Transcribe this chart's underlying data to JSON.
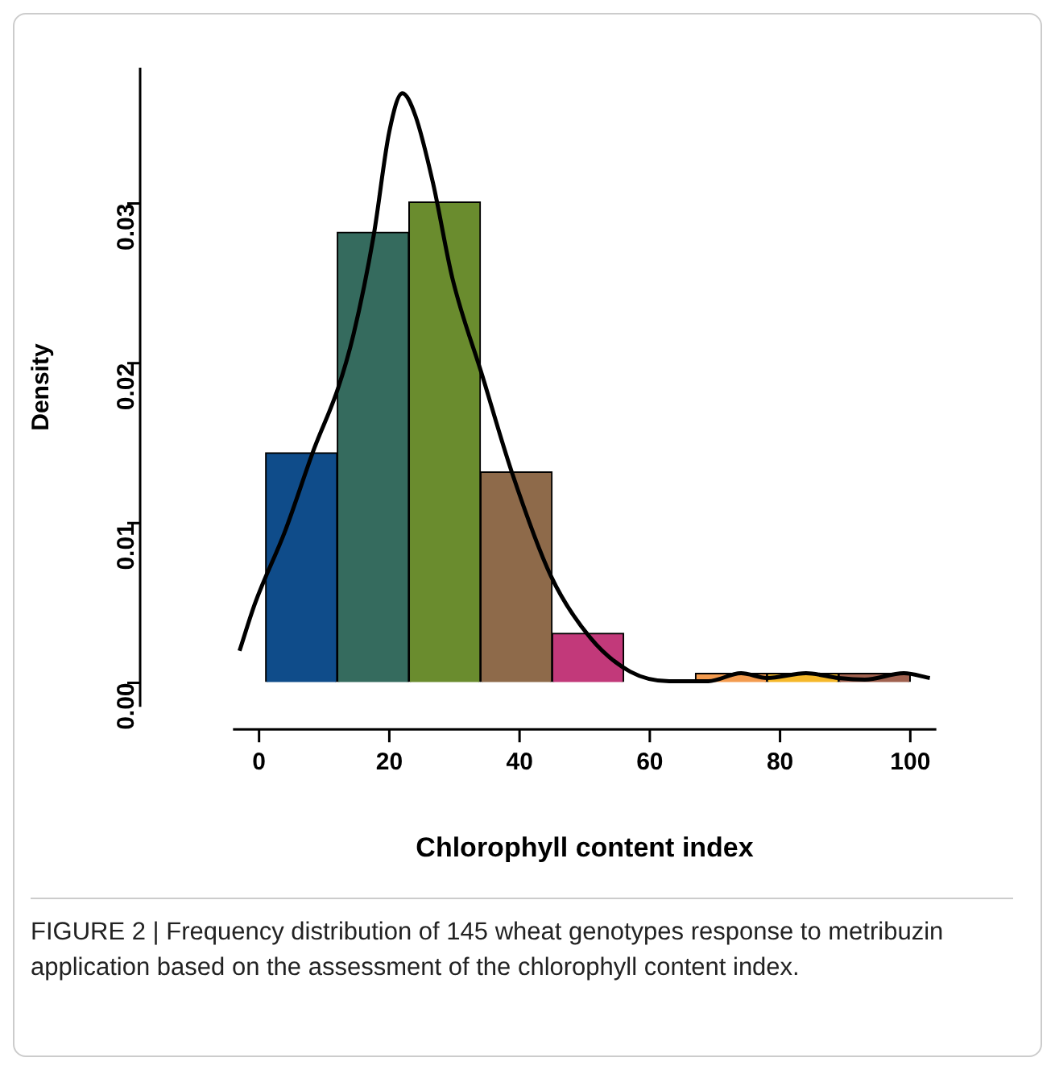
{
  "chart_data": {
    "type": "histogram",
    "xlabel": "Chlorophyll content index",
    "ylabel": "Density",
    "bins": [
      1,
      12,
      23,
      34,
      45,
      56,
      67,
      78,
      89,
      100
    ],
    "values": [
      0.0144,
      0.0282,
      0.0301,
      0.0132,
      0.0031,
      0,
      0.0006,
      0.0006,
      0.0006
    ],
    "colors": [
      "#0f4c8a",
      "#356b5e",
      "#6a8c2e",
      "#8e6a4a",
      "#c2397a",
      "#888888",
      "#f39b4f",
      "#f5b82a",
      "#a0614f"
    ],
    "series": [
      {
        "type": "line",
        "color": "#000000",
        "x": [
          -3,
          -0.6,
          4,
          8.5,
          12.1,
          14.5,
          17.6,
          20,
          22,
          24,
          26.7,
          29.7,
          34.3,
          38.8,
          44.8,
          50.9,
          57,
          63,
          69,
          74,
          78,
          84,
          89,
          93,
          99,
          103
        ],
        "values": [
          0.002,
          0.005,
          0.0095,
          0.0147,
          0.0184,
          0.0218,
          0.028,
          0.0345,
          0.0369,
          0.0355,
          0.0313,
          0.0253,
          0.0192,
          0.0132,
          0.0067,
          0.0028,
          0.0007,
          0.0001,
          0.0001,
          0.0006,
          0.0003,
          0.0006,
          0.0003,
          0.0002,
          0.0006,
          0.0003
        ]
      }
    ],
    "xlim": [
      -4,
      104
    ],
    "ylim": [
      -0.0015,
      0.0385
    ],
    "xticks": [
      0,
      20,
      40,
      60,
      80,
      100
    ],
    "yticks": [
      {
        "value": 0,
        "label": "0.00"
      },
      {
        "value": 0.01,
        "label": "0.01"
      },
      {
        "value": 0.02,
        "label": "0.02"
      },
      {
        "value": 0.03,
        "label": "0.03"
      }
    ],
    "grid": false,
    "legend": false,
    "annotations": [
      "FIGURE 2 | Frequency distribution of 145 wheat genotypes response to metribuzin application based on the assessment of the chlorophyll content index."
    ]
  }
}
